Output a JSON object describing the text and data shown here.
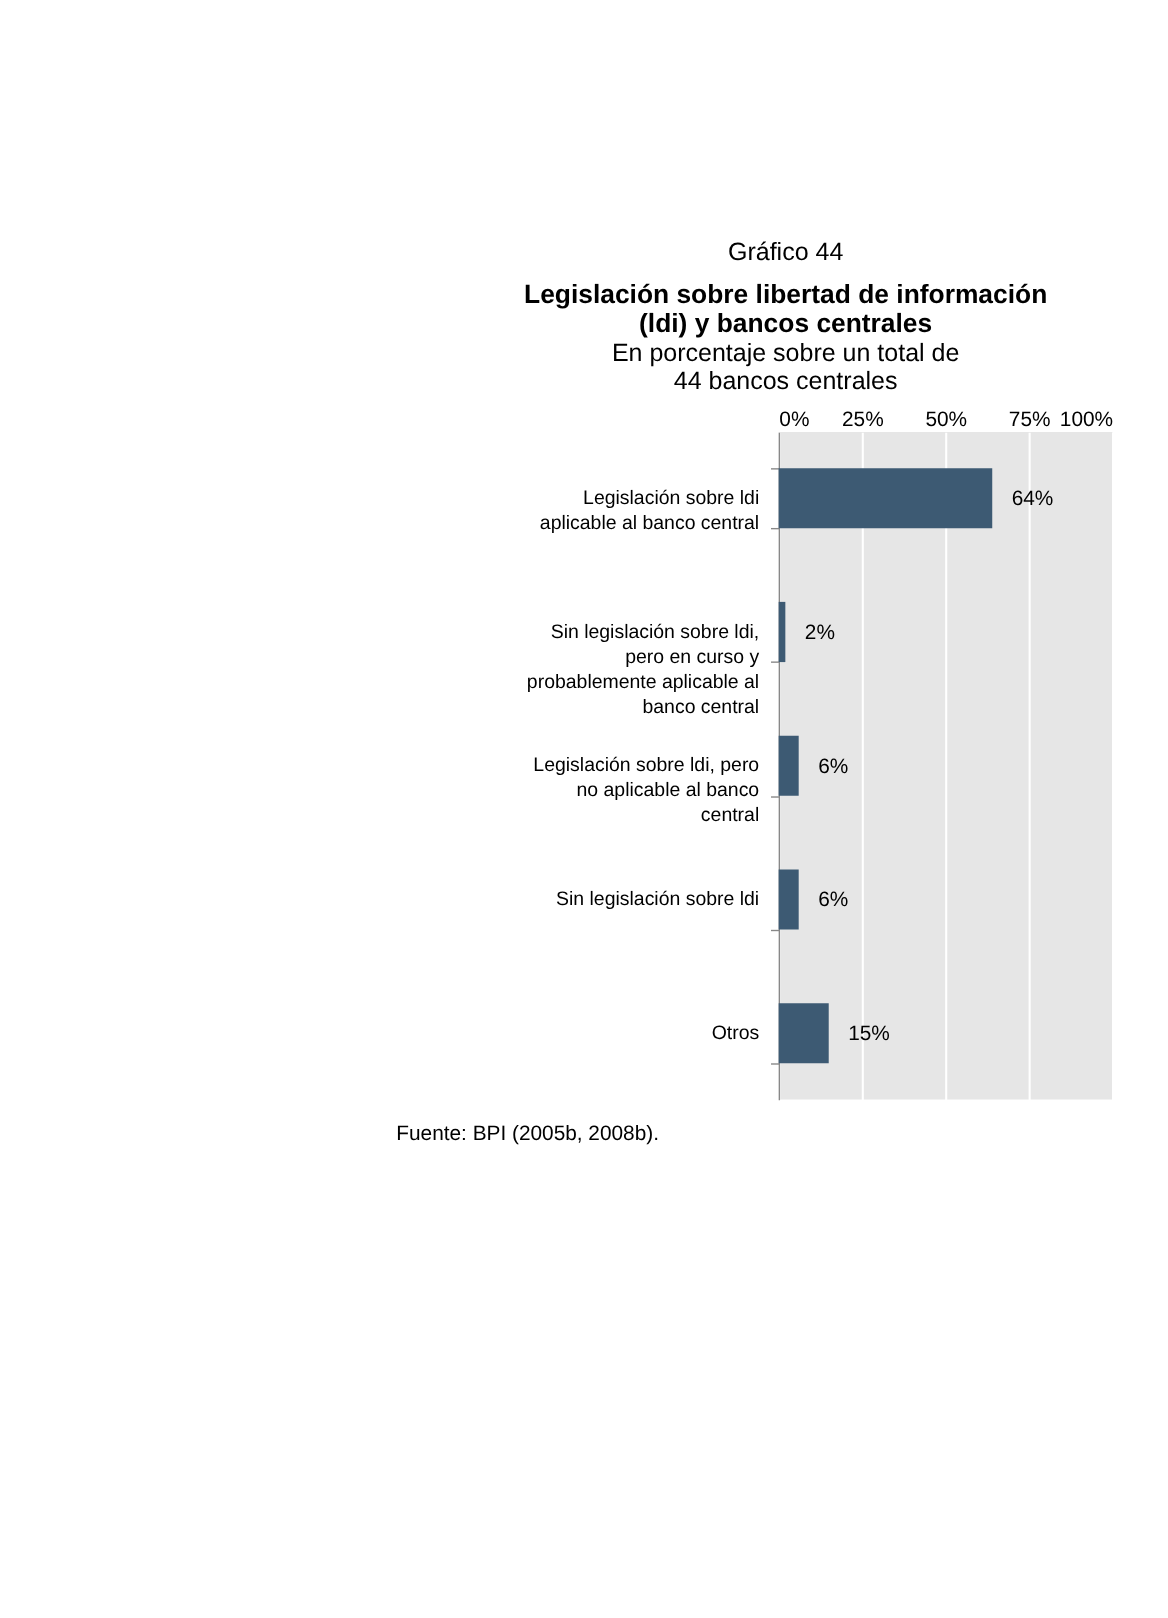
{
  "chart_data": {
    "type": "bar",
    "orientation": "horizontal",
    "title": "Legislación sobre libertad de información (ldi) y bancos centrales",
    "subtitle": "En porcentaje sobre un total de 44 bancos centrales",
    "annotations": [
      "Gráfico 44",
      "Fuente: BPI (2005b, 2008b)."
    ],
    "categories": [
      "Legislación sobre ldi aplicable al banco central",
      "Sin legislación sobre ldi, pero en curso y probablemente aplicable al banco central",
      "Legislación sobre ldi, pero no aplicable al banco central",
      "Sin legislación sobre ldi",
      "Otros"
    ],
    "values": [
      64,
      2,
      6,
      6,
      15
    ],
    "value_labels": [
      "64%",
      "2%",
      "6%",
      "6%",
      "15%"
    ],
    "color": "#3d5a73",
    "xlim": [
      0,
      100
    ],
    "xticks": [
      {
        "value": 0,
        "label": "0%"
      },
      {
        "value": 25,
        "label": "25%"
      },
      {
        "value": 50,
        "label": "50%"
      },
      {
        "value": 75,
        "label": "75%"
      },
      {
        "value": 100,
        "label": "100%"
      }
    ],
    "grid": "x"
  }
}
